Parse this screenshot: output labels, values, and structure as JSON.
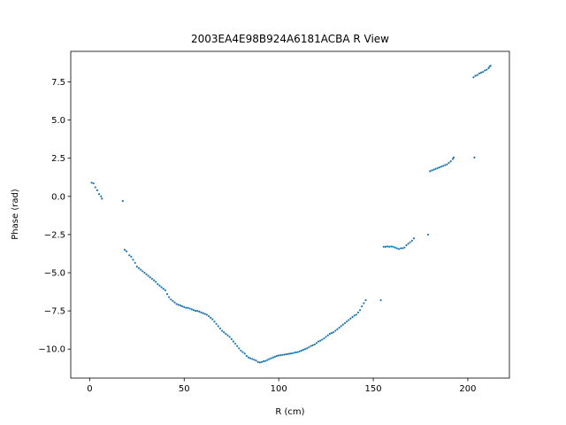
{
  "chart_data": {
    "type": "scatter",
    "title": "2003EA4E98B924A6181ACBA R View",
    "xlabel": "R (cm)",
    "ylabel": "Phase (rad)",
    "xlim": [
      -10,
      222
    ],
    "ylim": [
      -11.9,
      9.5
    ],
    "xticks": [
      0,
      50,
      100,
      150,
      200
    ],
    "yticks": [
      7.5,
      5.0,
      2.5,
      0.0,
      -2.5,
      -5.0,
      -7.5,
      -10.0
    ],
    "xtick_labels": [
      "0",
      "50",
      "100",
      "150",
      "200"
    ],
    "ytick_labels": [
      "7.5",
      "5.0",
      "2.5",
      "0.0",
      "−2.5",
      "−5.0",
      "−7.5",
      "−10.0"
    ],
    "grid": false,
    "marker_color": "#1f77b4",
    "series": [
      {
        "points": [
          [
            1,
            0.9
          ],
          [
            2,
            0.85
          ],
          [
            3,
            0.6
          ],
          [
            4,
            0.4
          ],
          [
            5,
            0.15
          ],
          [
            6,
            0.0
          ],
          [
            6.5,
            -0.15
          ],
          [
            17.5,
            -0.3
          ],
          [
            18.5,
            -3.5
          ],
          [
            19.5,
            -3.6
          ],
          [
            21,
            -3.85
          ],
          [
            22,
            -3.95
          ],
          [
            23,
            -4.15
          ],
          [
            24,
            -4.35
          ],
          [
            25,
            -4.6
          ],
          [
            26,
            -4.7
          ],
          [
            27,
            -4.8
          ],
          [
            28,
            -4.9
          ],
          [
            29,
            -5.0
          ],
          [
            30,
            -5.1
          ],
          [
            31,
            -5.2
          ],
          [
            32,
            -5.3
          ],
          [
            33,
            -5.4
          ],
          [
            34,
            -5.5
          ],
          [
            35,
            -5.6
          ],
          [
            36,
            -5.75
          ],
          [
            37,
            -5.85
          ],
          [
            38,
            -5.95
          ],
          [
            39,
            -6.05
          ],
          [
            40,
            -6.15
          ],
          [
            41,
            -6.4
          ],
          [
            42,
            -6.6
          ],
          [
            43,
            -6.75
          ],
          [
            44,
            -6.85
          ],
          [
            45,
            -6.95
          ],
          [
            46,
            -7.05
          ],
          [
            47,
            -7.1
          ],
          [
            48,
            -7.15
          ],
          [
            49,
            -7.2
          ],
          [
            50,
            -7.25
          ],
          [
            51,
            -7.3
          ],
          [
            52,
            -7.3
          ],
          [
            53,
            -7.35
          ],
          [
            54,
            -7.4
          ],
          [
            55,
            -7.45
          ],
          [
            56,
            -7.5
          ],
          [
            57,
            -7.5
          ],
          [
            58,
            -7.55
          ],
          [
            59,
            -7.6
          ],
          [
            60,
            -7.65
          ],
          [
            61,
            -7.7
          ],
          [
            62,
            -7.75
          ],
          [
            63,
            -7.85
          ],
          [
            64,
            -7.95
          ],
          [
            65,
            -8.05
          ],
          [
            66,
            -8.2
          ],
          [
            67,
            -8.35
          ],
          [
            68,
            -8.5
          ],
          [
            69,
            -8.65
          ],
          [
            70,
            -8.8
          ],
          [
            71,
            -8.9
          ],
          [
            72,
            -9.0
          ],
          [
            73,
            -9.1
          ],
          [
            74,
            -9.2
          ],
          [
            75,
            -9.35
          ],
          [
            76,
            -9.5
          ],
          [
            77,
            -9.65
          ],
          [
            78,
            -9.8
          ],
          [
            79,
            -9.95
          ],
          [
            80,
            -10.1
          ],
          [
            81,
            -10.2
          ],
          [
            82,
            -10.3
          ],
          [
            83,
            -10.45
          ],
          [
            84,
            -10.55
          ],
          [
            85,
            -10.6
          ],
          [
            86,
            -10.65
          ],
          [
            87,
            -10.7
          ],
          [
            88,
            -10.75
          ],
          [
            89,
            -10.85
          ],
          [
            90,
            -10.88
          ],
          [
            91,
            -10.85
          ],
          [
            92,
            -10.8
          ],
          [
            93,
            -10.78
          ],
          [
            94,
            -10.72
          ],
          [
            95,
            -10.65
          ],
          [
            96,
            -10.6
          ],
          [
            97,
            -10.55
          ],
          [
            98,
            -10.5
          ],
          [
            99,
            -10.45
          ],
          [
            100,
            -10.42
          ],
          [
            101,
            -10.4
          ],
          [
            102,
            -10.38
          ],
          [
            103,
            -10.36
          ],
          [
            104,
            -10.34
          ],
          [
            105,
            -10.32
          ],
          [
            106,
            -10.3
          ],
          [
            107,
            -10.28
          ],
          [
            108,
            -10.25
          ],
          [
            109,
            -10.22
          ],
          [
            110,
            -10.2
          ],
          [
            111,
            -10.15
          ],
          [
            112,
            -10.1
          ],
          [
            113,
            -10.05
          ],
          [
            114,
            -10.0
          ],
          [
            115,
            -9.95
          ],
          [
            116,
            -9.88
          ],
          [
            117,
            -9.8
          ],
          [
            118,
            -9.75
          ],
          [
            119,
            -9.7
          ],
          [
            120,
            -9.6
          ],
          [
            121,
            -9.5
          ],
          [
            122,
            -9.45
          ],
          [
            123,
            -9.38
          ],
          [
            124,
            -9.3
          ],
          [
            125,
            -9.2
          ],
          [
            126,
            -9.1
          ],
          [
            127,
            -9.0
          ],
          [
            128,
            -8.95
          ],
          [
            129,
            -8.9
          ],
          [
            130,
            -8.8
          ],
          [
            131,
            -8.7
          ],
          [
            132,
            -8.6
          ],
          [
            133,
            -8.5
          ],
          [
            134,
            -8.4
          ],
          [
            135,
            -8.3
          ],
          [
            136,
            -8.2
          ],
          [
            137,
            -8.1
          ],
          [
            138,
            -8.0
          ],
          [
            139,
            -7.9
          ],
          [
            140,
            -7.8
          ],
          [
            141,
            -7.75
          ],
          [
            142,
            -7.6
          ],
          [
            143,
            -7.45
          ],
          [
            144,
            -7.2
          ],
          [
            145,
            -7.0
          ],
          [
            146,
            -6.8
          ],
          [
            154,
            -6.8
          ],
          [
            155.5,
            -3.3
          ],
          [
            156.5,
            -3.3
          ],
          [
            157.5,
            -3.28
          ],
          [
            158.5,
            -3.3
          ],
          [
            159.5,
            -3.28
          ],
          [
            160.5,
            -3.3
          ],
          [
            161.5,
            -3.35
          ],
          [
            162.5,
            -3.4
          ],
          [
            163.5,
            -3.45
          ],
          [
            164.5,
            -3.4
          ],
          [
            165.5,
            -3.4
          ],
          [
            166.5,
            -3.35
          ],
          [
            167.5,
            -3.2
          ],
          [
            168.5,
            -3.1
          ],
          [
            169.5,
            -3.0
          ],
          [
            170.5,
            -2.9
          ],
          [
            171.5,
            -2.75
          ],
          [
            179,
            -2.5
          ],
          [
            180,
            1.65
          ],
          [
            181,
            1.7
          ],
          [
            182,
            1.75
          ],
          [
            183,
            1.8
          ],
          [
            184,
            1.85
          ],
          [
            185,
            1.9
          ],
          [
            186,
            1.95
          ],
          [
            187,
            2.0
          ],
          [
            188,
            2.05
          ],
          [
            189,
            2.1
          ],
          [
            190,
            2.2
          ],
          [
            191,
            2.3
          ],
          [
            192,
            2.45
          ],
          [
            192.5,
            2.55
          ],
          [
            203.5,
            2.55
          ],
          [
            203,
            7.8
          ],
          [
            204,
            7.9
          ],
          [
            205,
            7.95
          ],
          [
            206,
            8.05
          ],
          [
            207,
            8.1
          ],
          [
            208,
            8.15
          ],
          [
            209,
            8.25
          ],
          [
            210,
            8.3
          ],
          [
            211,
            8.4
          ],
          [
            211.5,
            8.5
          ],
          [
            212,
            8.55
          ]
        ]
      }
    ]
  }
}
